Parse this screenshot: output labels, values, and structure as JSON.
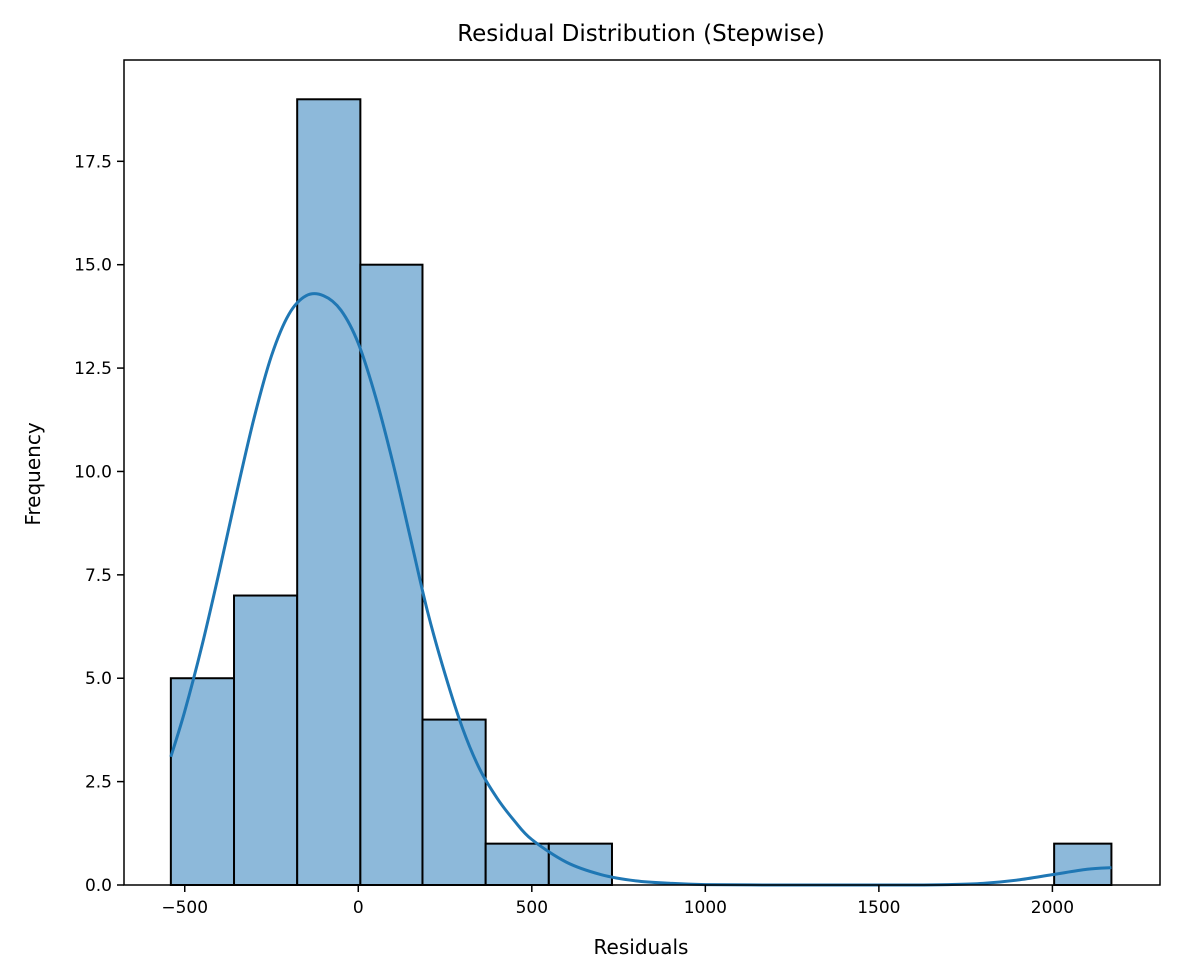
{
  "chart_data": {
    "type": "bar",
    "title": "Residual Distribution (Stepwise)",
    "xlabel": "Residuals",
    "ylabel": "Frequency",
    "xlim": [
      -675,
      2310
    ],
    "ylim": [
      0,
      19.95
    ],
    "xticks": [
      -500,
      0,
      500,
      1000,
      1500,
      2000
    ],
    "xtick_labels": [
      "−500",
      "0",
      "500",
      "1000",
      "1500",
      "2000"
    ],
    "yticks": [
      0,
      2.5,
      5,
      7.5,
      10,
      12.5,
      15,
      17.5
    ],
    "ytick_labels": [
      "0.0",
      "2.5",
      "5.0",
      "7.5",
      "10.0",
      "12.5",
      "15.0",
      "17.5"
    ],
    "grid": false,
    "bar_color": "#8db9da",
    "bar_edge_color": "#000000",
    "kde_color": "#1f77b4",
    "bins": [
      {
        "x0": -540,
        "x1": -358,
        "count": 5
      },
      {
        "x0": -358,
        "x1": -176,
        "count": 7
      },
      {
        "x0": -176,
        "x1": 6,
        "count": 19
      },
      {
        "x0": 6,
        "x1": 185,
        "count": 15
      },
      {
        "x0": 185,
        "x1": 367,
        "count": 4
      },
      {
        "x0": 367,
        "x1": 549,
        "count": 1
      },
      {
        "x0": 549,
        "x1": 731,
        "count": 1
      },
      {
        "x0": 731,
        "x1": 913,
        "count": 0
      },
      {
        "x0": 913,
        "x1": 1095,
        "count": 0
      },
      {
        "x0": 1095,
        "x1": 1277,
        "count": 0
      },
      {
        "x0": 1277,
        "x1": 1459,
        "count": 0
      },
      {
        "x0": 1459,
        "x1": 1641,
        "count": 0
      },
      {
        "x0": 1641,
        "x1": 1823,
        "count": 0
      },
      {
        "x0": 1823,
        "x1": 2005,
        "count": 0
      },
      {
        "x0": 2005,
        "x1": 2170,
        "count": 1
      }
    ],
    "kde": {
      "x": [
        -540,
        -500,
        -450,
        -400,
        -350,
        -300,
        -250,
        -200,
        -150,
        -100,
        -50,
        0,
        50,
        100,
        150,
        200,
        250,
        300,
        350,
        400,
        450,
        500,
        600,
        700,
        800,
        900,
        1000,
        1200,
        1400,
        1600,
        1700,
        1800,
        1900,
        2000,
        2100,
        2170
      ],
      "y": [
        3.1,
        4.2,
        5.8,
        7.6,
        9.5,
        11.3,
        12.8,
        13.8,
        14.25,
        14.25,
        13.9,
        13.1,
        11.8,
        10.2,
        8.4,
        6.6,
        5.1,
        3.8,
        2.8,
        2.1,
        1.55,
        1.1,
        0.55,
        0.25,
        0.1,
        0.04,
        0.01,
        0.0,
        0.0,
        0.0,
        0.01,
        0.04,
        0.12,
        0.25,
        0.38,
        0.42
      ]
    }
  }
}
